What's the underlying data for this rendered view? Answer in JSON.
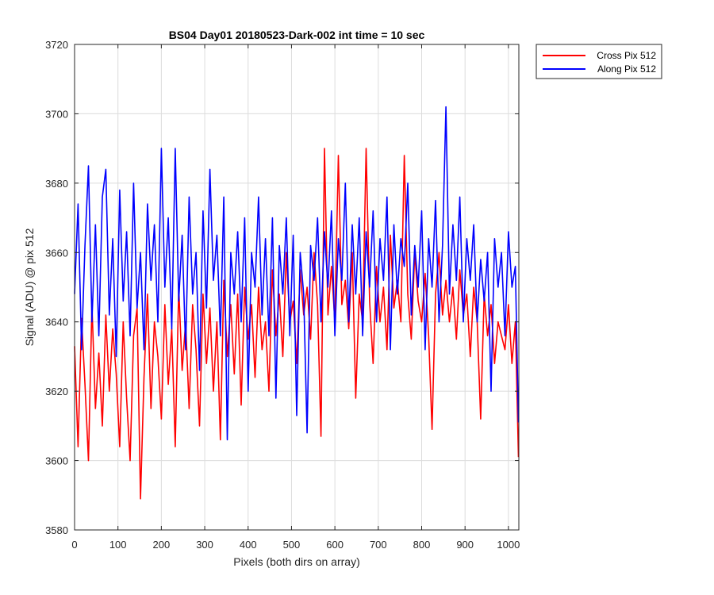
{
  "chart_data": {
    "type": "line",
    "title": "BS04 Day01 20180523-Dark-002 int time = 10 sec",
    "xlabel": "Pixels (both dirs on array)",
    "ylabel": "Signal (ADU) @ pix 512",
    "xlim": [
      0,
      1024
    ],
    "ylim": [
      3580,
      3720
    ],
    "xticks": [
      0,
      100,
      200,
      300,
      400,
      500,
      600,
      700,
      800,
      900,
      1000
    ],
    "yticks": [
      3580,
      3600,
      3620,
      3640,
      3660,
      3680,
      3700,
      3720
    ],
    "grid": true,
    "legend_position": "outside-top-right",
    "series": [
      {
        "name": "Cross Pix 512",
        "color": "#ff0000",
        "x": [
          0,
          8,
          16,
          24,
          32,
          40,
          48,
          56,
          64,
          72,
          80,
          88,
          96,
          104,
          112,
          120,
          128,
          136,
          144,
          152,
          160,
          168,
          176,
          184,
          192,
          200,
          208,
          216,
          224,
          232,
          240,
          248,
          256,
          264,
          272,
          280,
          288,
          296,
          304,
          312,
          320,
          328,
          336,
          344,
          352,
          360,
          368,
          376,
          384,
          392,
          400,
          408,
          416,
          424,
          432,
          440,
          448,
          456,
          464,
          472,
          480,
          488,
          496,
          504,
          512,
          520,
          528,
          536,
          544,
          552,
          560,
          568,
          576,
          584,
          592,
          600,
          608,
          616,
          624,
          632,
          640,
          648,
          656,
          664,
          672,
          680,
          688,
          696,
          704,
          712,
          720,
          728,
          736,
          744,
          752,
          760,
          768,
          776,
          784,
          792,
          800,
          808,
          816,
          824,
          832,
          840,
          848,
          856,
          864,
          872,
          880,
          888,
          896,
          904,
          912,
          920,
          928,
          936,
          944,
          952,
          960,
          968,
          976,
          984,
          992,
          1000,
          1008,
          1016,
          1023
        ],
        "y": [
          3633,
          3604,
          3641,
          3622,
          3600,
          3645,
          3615,
          3631,
          3610,
          3642,
          3620,
          3638,
          3625,
          3604,
          3640,
          3618,
          3600,
          3636,
          3644,
          3589,
          3624,
          3648,
          3615,
          3640,
          3630,
          3612,
          3645,
          3622,
          3638,
          3604,
          3650,
          3626,
          3640,
          3615,
          3645,
          3632,
          3610,
          3648,
          3628,
          3644,
          3620,
          3640,
          3606,
          3652,
          3630,
          3645,
          3625,
          3648,
          3616,
          3650,
          3635,
          3645,
          3624,
          3650,
          3632,
          3640,
          3620,
          3655,
          3636,
          3648,
          3630,
          3660,
          3640,
          3646,
          3628,
          3655,
          3642,
          3650,
          3635,
          3660,
          3645,
          3607,
          3690,
          3642,
          3656,
          3640,
          3688,
          3645,
          3652,
          3638,
          3660,
          3618,
          3648,
          3640,
          3690,
          3646,
          3628,
          3656,
          3640,
          3650,
          3632,
          3665,
          3644,
          3652,
          3640,
          3688,
          3648,
          3635,
          3660,
          3646,
          3640,
          3654,
          3636,
          3609,
          3648,
          3660,
          3642,
          3652,
          3640,
          3650,
          3635,
          3655,
          3642,
          3648,
          3630,
          3650,
          3640,
          3612,
          3648,
          3636,
          3645,
          3628,
          3640,
          3636,
          3632,
          3645,
          3628,
          3640,
          3601
        ]
      },
      {
        "name": "Along Pix 512",
        "color": "#0000ff",
        "x": [
          0,
          8,
          16,
          24,
          32,
          40,
          48,
          56,
          64,
          72,
          80,
          88,
          96,
          104,
          112,
          120,
          128,
          136,
          144,
          152,
          160,
          168,
          176,
          184,
          192,
          200,
          208,
          216,
          224,
          232,
          240,
          248,
          256,
          264,
          272,
          280,
          288,
          296,
          304,
          312,
          320,
          328,
          336,
          344,
          352,
          360,
          368,
          376,
          384,
          392,
          400,
          408,
          416,
          424,
          432,
          440,
          448,
          456,
          464,
          472,
          480,
          488,
          496,
          504,
          512,
          520,
          528,
          536,
          544,
          552,
          560,
          568,
          576,
          584,
          592,
          600,
          608,
          616,
          624,
          632,
          640,
          648,
          656,
          664,
          672,
          680,
          688,
          696,
          704,
          712,
          720,
          728,
          736,
          744,
          752,
          760,
          768,
          776,
          784,
          792,
          800,
          808,
          816,
          824,
          832,
          840,
          848,
          856,
          864,
          872,
          880,
          888,
          896,
          904,
          912,
          920,
          928,
          936,
          944,
          952,
          960,
          968,
          976,
          984,
          992,
          1000,
          1008,
          1016,
          1023
        ],
        "y": [
          3648,
          3674,
          3632,
          3662,
          3685,
          3640,
          3668,
          3636,
          3676,
          3684,
          3642,
          3664,
          3630,
          3678,
          3646,
          3666,
          3636,
          3680,
          3644,
          3660,
          3632,
          3674,
          3652,
          3668,
          3640,
          3690,
          3650,
          3670,
          3638,
          3690,
          3646,
          3665,
          3632,
          3676,
          3648,
          3660,
          3626,
          3672,
          3644,
          3684,
          3652,
          3665,
          3636,
          3676,
          3606,
          3660,
          3648,
          3666,
          3640,
          3670,
          3620,
          3660,
          3650,
          3676,
          3642,
          3664,
          3636,
          3670,
          3618,
          3662,
          3648,
          3670,
          3636,
          3665,
          3613,
          3660,
          3648,
          3608,
          3662,
          3652,
          3670,
          3640,
          3666,
          3650,
          3672,
          3636,
          3664,
          3652,
          3680,
          3640,
          3668,
          3648,
          3670,
          3636,
          3666,
          3650,
          3672,
          3640,
          3664,
          3652,
          3676,
          3632,
          3668,
          3648,
          3664,
          3656,
          3680,
          3642,
          3662,
          3650,
          3672,
          3632,
          3664,
          3650,
          3675,
          3640,
          3662,
          3702,
          3648,
          3668,
          3652,
          3676,
          3640,
          3664,
          3652,
          3668,
          3640,
          3658,
          3646,
          3660,
          3620,
          3664,
          3650,
          3660,
          3636,
          3666,
          3650,
          3656,
          3611
        ]
      }
    ]
  }
}
